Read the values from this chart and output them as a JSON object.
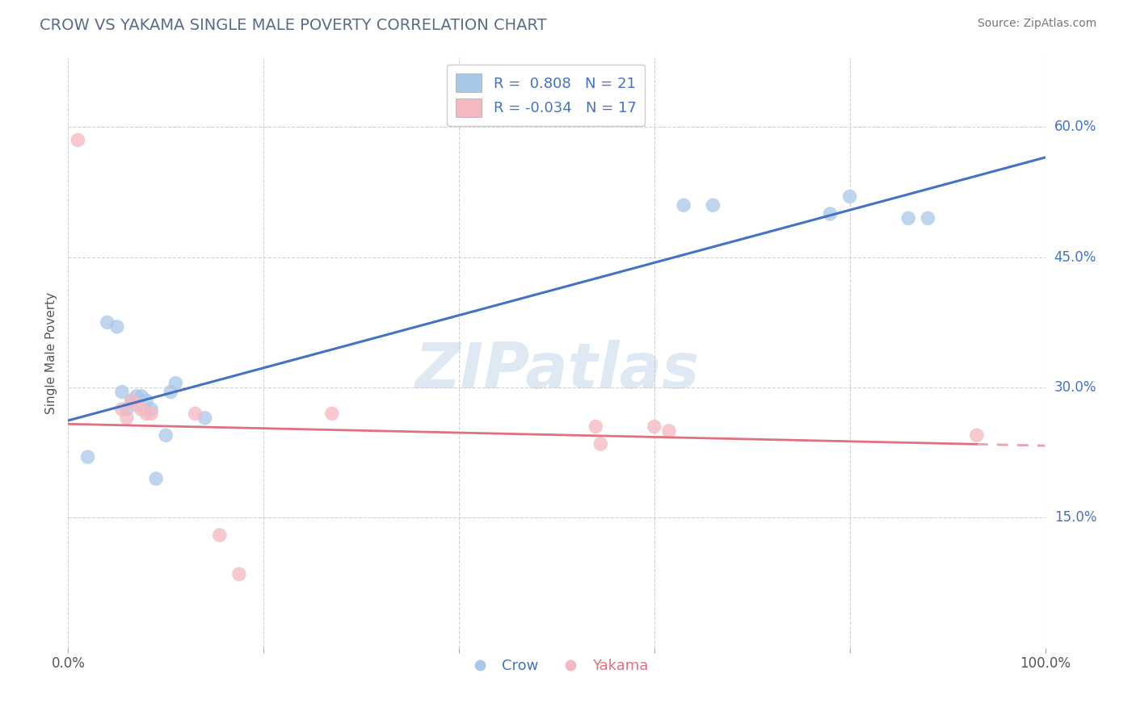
{
  "title": "CROW VS YAKAMA SINGLE MALE POVERTY CORRELATION CHART",
  "source": "Source: ZipAtlas.com",
  "xlabel": "",
  "ylabel": "Single Male Poverty",
  "xlim": [
    0.0,
    1.0
  ],
  "ylim": [
    0.0,
    0.68
  ],
  "yticks": [
    0.15,
    0.3,
    0.45,
    0.6
  ],
  "ytick_labels": [
    "15.0%",
    "30.0%",
    "45.0%",
    "60.0%"
  ],
  "xticks": [
    0.0,
    0.2,
    0.4,
    0.6,
    0.8,
    1.0
  ],
  "xtick_labels": [
    "0.0%",
    "",
    "",
    "",
    "",
    "100.0%"
  ],
  "crow_R": 0.808,
  "crow_N": 21,
  "yakama_R": -0.034,
  "yakama_N": 17,
  "crow_color": "#a8c8e8",
  "yakama_color": "#f4b8c0",
  "crow_line_color": "#4472c4",
  "yakama_line_color": "#e07080",
  "crow_x": [
    0.02,
    0.04,
    0.05,
    0.055,
    0.06,
    0.065,
    0.07,
    0.075,
    0.08,
    0.085,
    0.09,
    0.1,
    0.105,
    0.11,
    0.14,
    0.63,
    0.66,
    0.78,
    0.8,
    0.86,
    0.88
  ],
  "crow_y": [
    0.22,
    0.375,
    0.37,
    0.295,
    0.275,
    0.285,
    0.29,
    0.29,
    0.285,
    0.275,
    0.195,
    0.245,
    0.295,
    0.305,
    0.265,
    0.51,
    0.51,
    0.5,
    0.52,
    0.495,
    0.495
  ],
  "yakama_x": [
    0.01,
    0.055,
    0.06,
    0.065,
    0.07,
    0.075,
    0.08,
    0.085,
    0.13,
    0.155,
    0.175,
    0.27,
    0.54,
    0.545,
    0.6,
    0.615,
    0.93
  ],
  "yakama_y": [
    0.585,
    0.275,
    0.265,
    0.285,
    0.28,
    0.275,
    0.27,
    0.27,
    0.27,
    0.13,
    0.085,
    0.27,
    0.255,
    0.235,
    0.255,
    0.25,
    0.245
  ],
  "background_color": "#ffffff",
  "grid_color": "#cccccc",
  "title_color": "#5b5ea6",
  "right_label_color": "#4472c4",
  "legend_r_color": "#4472c4",
  "watermark": "ZIPatlas"
}
